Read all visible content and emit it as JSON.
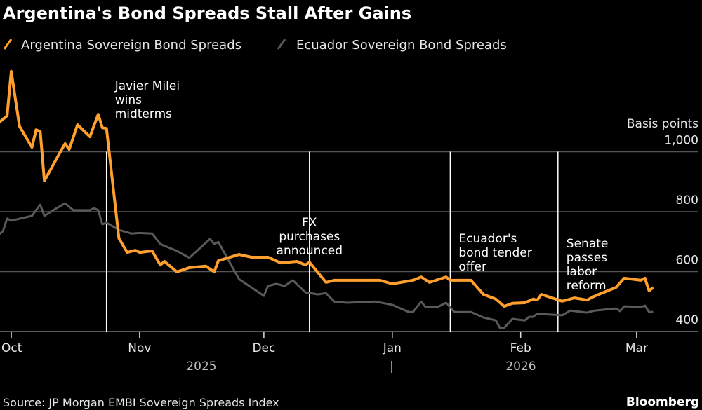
{
  "chart_data": {
    "type": "line",
    "title": "Argentina's Bond Spreads Stall After Gains",
    "ylabel": "Basis points",
    "ylim": [
      400,
      1270
    ],
    "yticks": [
      400,
      600,
      800,
      1000
    ],
    "ytick_labels": [
      "400",
      "600",
      "800",
      "1,000"
    ],
    "xlim": [
      "2025-09-28",
      "2026-03-12"
    ],
    "xticks": [
      {
        "date": "2025-10-01",
        "label": "Oct"
      },
      {
        "date": "2025-11-01",
        "label": "Nov"
      },
      {
        "date": "2025-12-01",
        "label": "Dec"
      },
      {
        "date": "2026-01-01",
        "label": "Jan"
      },
      {
        "date": "2026-02-01",
        "label": "Feb"
      },
      {
        "date": "2026-03-01",
        "label": "Mar"
      }
    ],
    "year_labels": [
      "2025",
      "2026"
    ],
    "year_separator": "|",
    "grid": true,
    "legend_position": "top-left",
    "series": [
      {
        "name": "Argentina Sovereign Bond Spreads",
        "color": "#ff9f2e",
        "points": [
          [
            "2025-09-28",
            1097
          ],
          [
            "2025-09-30",
            1120
          ],
          [
            "2025-10-01",
            1268
          ],
          [
            "2025-10-03",
            1085
          ],
          [
            "2025-10-06",
            1015
          ],
          [
            "2025-10-07",
            1073
          ],
          [
            "2025-10-08",
            1068
          ],
          [
            "2025-10-09",
            903
          ],
          [
            "2025-10-13",
            1003
          ],
          [
            "2025-10-14",
            1027
          ],
          [
            "2025-10-15",
            1008
          ],
          [
            "2025-10-17",
            1090
          ],
          [
            "2025-10-20",
            1050
          ],
          [
            "2025-10-22",
            1125
          ],
          [
            "2025-10-23",
            1080
          ],
          [
            "2025-10-24",
            1078
          ],
          [
            "2025-10-27",
            711
          ],
          [
            "2025-10-29",
            664
          ],
          [
            "2025-10-31",
            671
          ],
          [
            "2025-11-01",
            664
          ],
          [
            "2025-11-04",
            669
          ],
          [
            "2025-11-06",
            622
          ],
          [
            "2025-11-07",
            634
          ],
          [
            "2025-11-10",
            599
          ],
          [
            "2025-11-13",
            613
          ],
          [
            "2025-11-17",
            618
          ],
          [
            "2025-11-19",
            599
          ],
          [
            "2025-11-20",
            636
          ],
          [
            "2025-11-25",
            657
          ],
          [
            "2025-11-28",
            648
          ],
          [
            "2025-12-02",
            648
          ],
          [
            "2025-12-05",
            629
          ],
          [
            "2025-12-09",
            634
          ],
          [
            "2025-12-11",
            622
          ],
          [
            "2025-12-12",
            631
          ],
          [
            "2025-12-16",
            564
          ],
          [
            "2025-12-18",
            571
          ],
          [
            "2025-12-22",
            571
          ],
          [
            "2025-12-29",
            571
          ],
          [
            "2026-01-01",
            559
          ],
          [
            "2026-01-06",
            571
          ],
          [
            "2026-01-08",
            582
          ],
          [
            "2026-01-10",
            564
          ],
          [
            "2026-01-14",
            582
          ],
          [
            "2026-01-15",
            571
          ],
          [
            "2026-01-17",
            571
          ],
          [
            "2026-01-20",
            571
          ],
          [
            "2026-01-23",
            524
          ],
          [
            "2026-01-26",
            508
          ],
          [
            "2026-01-28",
            484
          ],
          [
            "2026-01-30",
            494
          ],
          [
            "2026-02-02",
            496
          ],
          [
            "2026-02-04",
            508
          ],
          [
            "2026-02-05",
            505
          ],
          [
            "2026-02-06",
            524
          ],
          [
            "2026-02-11",
            501
          ],
          [
            "2026-02-14",
            512
          ],
          [
            "2026-02-17",
            505
          ],
          [
            "2026-02-19",
            519
          ],
          [
            "2026-02-22",
            536
          ],
          [
            "2026-02-24",
            547
          ],
          [
            "2026-02-26",
            578
          ],
          [
            "2026-03-02",
            571
          ],
          [
            "2026-03-03",
            578
          ],
          [
            "2026-03-04",
            536
          ],
          [
            "2026-03-05",
            547
          ]
        ]
      },
      {
        "name": "Ecuador Sovereign Bond Spreads",
        "color": "#5a5a5a",
        "points": [
          [
            "2025-09-28",
            723
          ],
          [
            "2025-09-29",
            735
          ],
          [
            "2025-09-30",
            777
          ],
          [
            "2025-10-01",
            770
          ],
          [
            "2025-10-06",
            786
          ],
          [
            "2025-10-07",
            805
          ],
          [
            "2025-10-08",
            823
          ],
          [
            "2025-10-09",
            786
          ],
          [
            "2025-10-12",
            812
          ],
          [
            "2025-10-14",
            828
          ],
          [
            "2025-10-16",
            805
          ],
          [
            "2025-10-20",
            805
          ],
          [
            "2025-10-21",
            812
          ],
          [
            "2025-10-22",
            805
          ],
          [
            "2025-10-23",
            758
          ],
          [
            "2025-10-24",
            763
          ],
          [
            "2025-10-27",
            739
          ],
          [
            "2025-10-30",
            727
          ],
          [
            "2025-11-01",
            729
          ],
          [
            "2025-11-04",
            727
          ],
          [
            "2025-11-06",
            692
          ],
          [
            "2025-11-10",
            669
          ],
          [
            "2025-11-13",
            646
          ],
          [
            "2025-11-18",
            709
          ],
          [
            "2025-11-19",
            692
          ],
          [
            "2025-11-20",
            699
          ],
          [
            "2025-11-25",
            575
          ],
          [
            "2025-12-01",
            519
          ],
          [
            "2025-12-02",
            552
          ],
          [
            "2025-12-04",
            559
          ],
          [
            "2025-12-06",
            552
          ],
          [
            "2025-12-08",
            571
          ],
          [
            "2025-12-11",
            531
          ],
          [
            "2025-12-14",
            524
          ],
          [
            "2025-12-16",
            528
          ],
          [
            "2025-12-18",
            500
          ],
          [
            "2025-12-21",
            496
          ],
          [
            "2025-12-28",
            500
          ],
          [
            "2026-01-01",
            489
          ],
          [
            "2026-01-05",
            465
          ],
          [
            "2026-01-06",
            465
          ],
          [
            "2026-01-08",
            500
          ],
          [
            "2026-01-09",
            482
          ],
          [
            "2026-01-12",
            482
          ],
          [
            "2026-01-14",
            496
          ],
          [
            "2026-01-16",
            465
          ],
          [
            "2026-01-20",
            465
          ],
          [
            "2026-01-23",
            447
          ],
          [
            "2026-01-26",
            437
          ],
          [
            "2026-01-27",
            412
          ],
          [
            "2026-01-28",
            412
          ],
          [
            "2026-01-30",
            442
          ],
          [
            "2026-02-02",
            437
          ],
          [
            "2026-02-03",
            449
          ],
          [
            "2026-02-04",
            449
          ],
          [
            "2026-02-05",
            459
          ],
          [
            "2026-02-11",
            454
          ],
          [
            "2026-02-13",
            470
          ],
          [
            "2026-02-17",
            463
          ],
          [
            "2026-02-19",
            470
          ],
          [
            "2026-02-24",
            477
          ],
          [
            "2026-02-25",
            468
          ],
          [
            "2026-02-26",
            484
          ],
          [
            "2026-03-02",
            482
          ],
          [
            "2026-03-03",
            486
          ],
          [
            "2026-03-04",
            465
          ],
          [
            "2026-03-05",
            465
          ]
        ]
      }
    ],
    "annotations": [
      {
        "date": "2025-10-24",
        "lines": [
          "Javier Milei",
          "wins",
          "midterms"
        ],
        "align": "left"
      },
      {
        "date": "2025-12-12",
        "lines": [
          "FX",
          "purchases",
          "announced"
        ],
        "align": "center"
      },
      {
        "date": "2026-01-15",
        "lines": [
          "Ecuador's",
          "bond tender",
          "offer"
        ],
        "align": "left"
      },
      {
        "date": "2026-02-10",
        "lines": [
          "Senate",
          "passes",
          "labor",
          "reform"
        ],
        "align": "left"
      }
    ],
    "source": "Source: JP Morgan EMBI Sovereign Spreads Index",
    "brand": "Bloomberg"
  }
}
